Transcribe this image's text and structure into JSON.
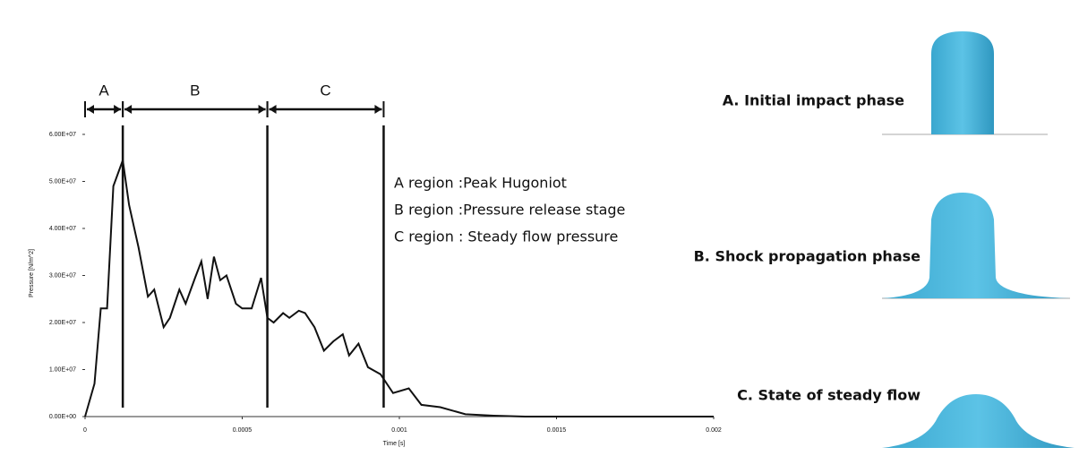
{
  "chart_data": {
    "type": "line",
    "x_label": "Time [s]",
    "y_label": "Pressure [N/m^2]",
    "x": [
      0,
      3e-05,
      5e-05,
      7e-05,
      9e-05,
      0.00012,
      0.00014,
      0.00017,
      0.0002,
      0.00022,
      0.00025,
      0.00027,
      0.0003,
      0.00032,
      0.00035,
      0.00037,
      0.00039,
      0.00041,
      0.00043,
      0.00045,
      0.00048,
      0.0005,
      0.00053,
      0.00056,
      0.00058,
      0.0006,
      0.00063,
      0.00065,
      0.00068,
      0.0007,
      0.00073,
      0.00076,
      0.00079,
      0.00082,
      0.00084,
      0.00087,
      0.0009,
      0.00094,
      0.00098,
      0.00103,
      0.00107,
      0.00113,
      0.00121,
      0.0013,
      0.0014,
      0.0016,
      0.0018,
      0.002
    ],
    "values": [
      0,
      7000000.0,
      23000000.0,
      23000000.0,
      49000000.0,
      54500000.0,
      45000000.0,
      36000000.0,
      25500000.0,
      27000000.0,
      19000000.0,
      21000000.0,
      27000000.0,
      24000000.0,
      29500000.0,
      33000000.0,
      25000000.0,
      34000000.0,
      29000000.0,
      30000000.0,
      24000000.0,
      23000000.0,
      23000000.0,
      29500000.0,
      21000000.0,
      20000000.0,
      22000000.0,
      21000000.0,
      22500000.0,
      22000000.0,
      19000000.0,
      14000000.0,
      16000000.0,
      17500000.0,
      13000000.0,
      15500000.0,
      10500000.0,
      9000000.0,
      5000000.0,
      6000000.0,
      2500000.0,
      2000000.0,
      500000.0,
      200000.0,
      0,
      0,
      0,
      0
    ],
    "color": "#111111",
    "xlim": [
      0,
      0.002
    ],
    "xticks": [
      0,
      0.0005,
      0.001,
      0.0015,
      0.002
    ],
    "ylim": [
      0,
      60000000.0
    ],
    "yticks": [
      {
        "value": 0,
        "label": "0.00E+00"
      },
      {
        "value": 10000000.0,
        "label": "1.00E+07"
      },
      {
        "value": 20000000.0,
        "label": "2.00E+07"
      },
      {
        "value": 30000000.0,
        "label": "3.00E+07"
      },
      {
        "value": 40000000.0,
        "label": "4.00E+07"
      },
      {
        "value": 50000000.0,
        "label": "5.00E+07"
      },
      {
        "value": 60000000.0,
        "label": "6.00E+07"
      }
    ],
    "regions": [
      {
        "label": "A",
        "start": 0,
        "end": 0.00012
      },
      {
        "label": "B",
        "start": 0.00012,
        "end": 0.00058
      },
      {
        "label": "C",
        "start": 0.00058,
        "end": 0.00095
      }
    ],
    "annotations": [
      "A region :Peak Hugoniot",
      "B region :Pressure release stage",
      "C region : Steady flow pressure"
    ]
  },
  "phases": [
    "A. Initial impact phase",
    "B. Shock propagation phase",
    "C. State of steady flow"
  ]
}
